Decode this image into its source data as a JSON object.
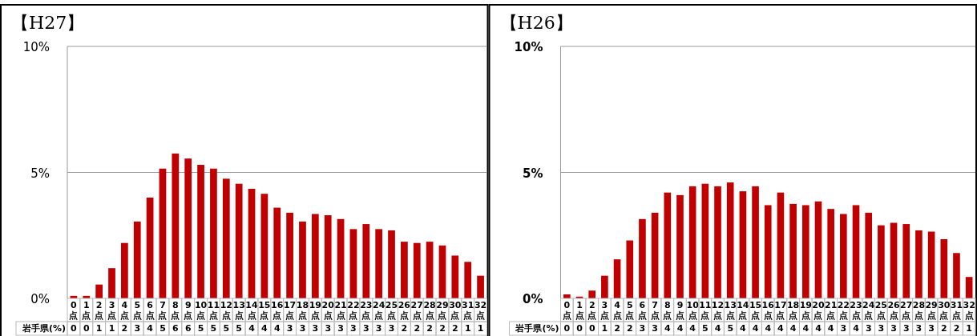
{
  "chart_data": [
    {
      "type": "bar",
      "title": "【H27】",
      "categories": [
        "0点",
        "1点",
        "2点",
        "3点",
        "4点",
        "5点",
        "6点",
        "7点",
        "8点",
        "9点",
        "10点",
        "11点",
        "12点",
        "13点",
        "14点",
        "15点",
        "16点",
        "17点",
        "18点",
        "19点",
        "20点",
        "21点",
        "22点",
        "23点",
        "24点",
        "25点",
        "26点",
        "27点",
        "28点",
        "29点",
        "30点",
        "31点",
        "32点"
      ],
      "series": [
        {
          "name": "岩手県(%)",
          "color": "#c00000",
          "values": [
            0.1,
            0.1,
            0.55,
            1.2,
            2.2,
            3.05,
            4.0,
            5.15,
            5.75,
            5.55,
            5.3,
            5.15,
            4.75,
            4.55,
            4.35,
            4.15,
            3.6,
            3.4,
            3.05,
            3.35,
            3.3,
            3.15,
            2.75,
            2.95,
            2.75,
            2.7,
            2.25,
            2.2,
            2.25,
            2.1,
            1.7,
            1.45,
            0.9
          ],
          "value_labels": [
            "0",
            "0",
            "1",
            "1",
            "2",
            "3",
            "4",
            "5",
            "6",
            "6",
            "5",
            "5",
            "5",
            "5",
            "4",
            "4",
            "4",
            "3",
            "3",
            "3",
            "3",
            "3",
            "3",
            "3",
            "3",
            "3",
            "2",
            "2",
            "2",
            "2",
            "2",
            "1",
            "1"
          ]
        }
      ],
      "ylim": [
        0,
        10
      ],
      "yticks": [
        {
          "value": 0,
          "label": "0%"
        },
        {
          "value": 5,
          "label": "5%"
        },
        {
          "value": 10,
          "label": "10%"
        }
      ],
      "grid": "y"
    },
    {
      "type": "bar",
      "title": "【H26】",
      "categories": [
        "0点",
        "1点",
        "2点",
        "3点",
        "4点",
        "5点",
        "6点",
        "7点",
        "8点",
        "9点",
        "10点",
        "11点",
        "12点",
        "13点",
        "14点",
        "15点",
        "16点",
        "17点",
        "18点",
        "19点",
        "20点",
        "21点",
        "22点",
        "23点",
        "24点",
        "25点",
        "26点",
        "27点",
        "28点",
        "29点",
        "30点",
        "31点",
        "32点"
      ],
      "series": [
        {
          "name": "岩手県(%)",
          "color": "#c00000",
          "values": [
            0.16,
            0.07,
            0.31,
            0.9,
            1.55,
            2.3,
            3.15,
            3.4,
            4.2,
            4.1,
            4.45,
            4.55,
            4.45,
            4.6,
            4.25,
            4.45,
            3.7,
            4.2,
            3.75,
            3.7,
            3.85,
            3.55,
            3.35,
            3.7,
            3.4,
            2.9,
            3.0,
            2.95,
            2.7,
            2.65,
            2.35,
            1.8,
            0.85
          ],
          "value_labels": [
            "0",
            "0",
            "0",
            "1",
            "2",
            "2",
            "3",
            "3",
            "4",
            "4",
            "4",
            "5",
            "4",
            "5",
            "4",
            "4",
            "4",
            "4",
            "4",
            "4",
            "4",
            "4",
            "3",
            "4",
            "3",
            "3",
            "3",
            "3",
            "3",
            "3",
            "2",
            "2",
            "1"
          ]
        }
      ],
      "ylim": [
        0,
        10
      ],
      "yticks": [
        {
          "value": 0,
          "label": "0%"
        },
        {
          "value": 5,
          "label": "5%"
        },
        {
          "value": 10,
          "label": "10%"
        }
      ],
      "grid": "y"
    }
  ]
}
